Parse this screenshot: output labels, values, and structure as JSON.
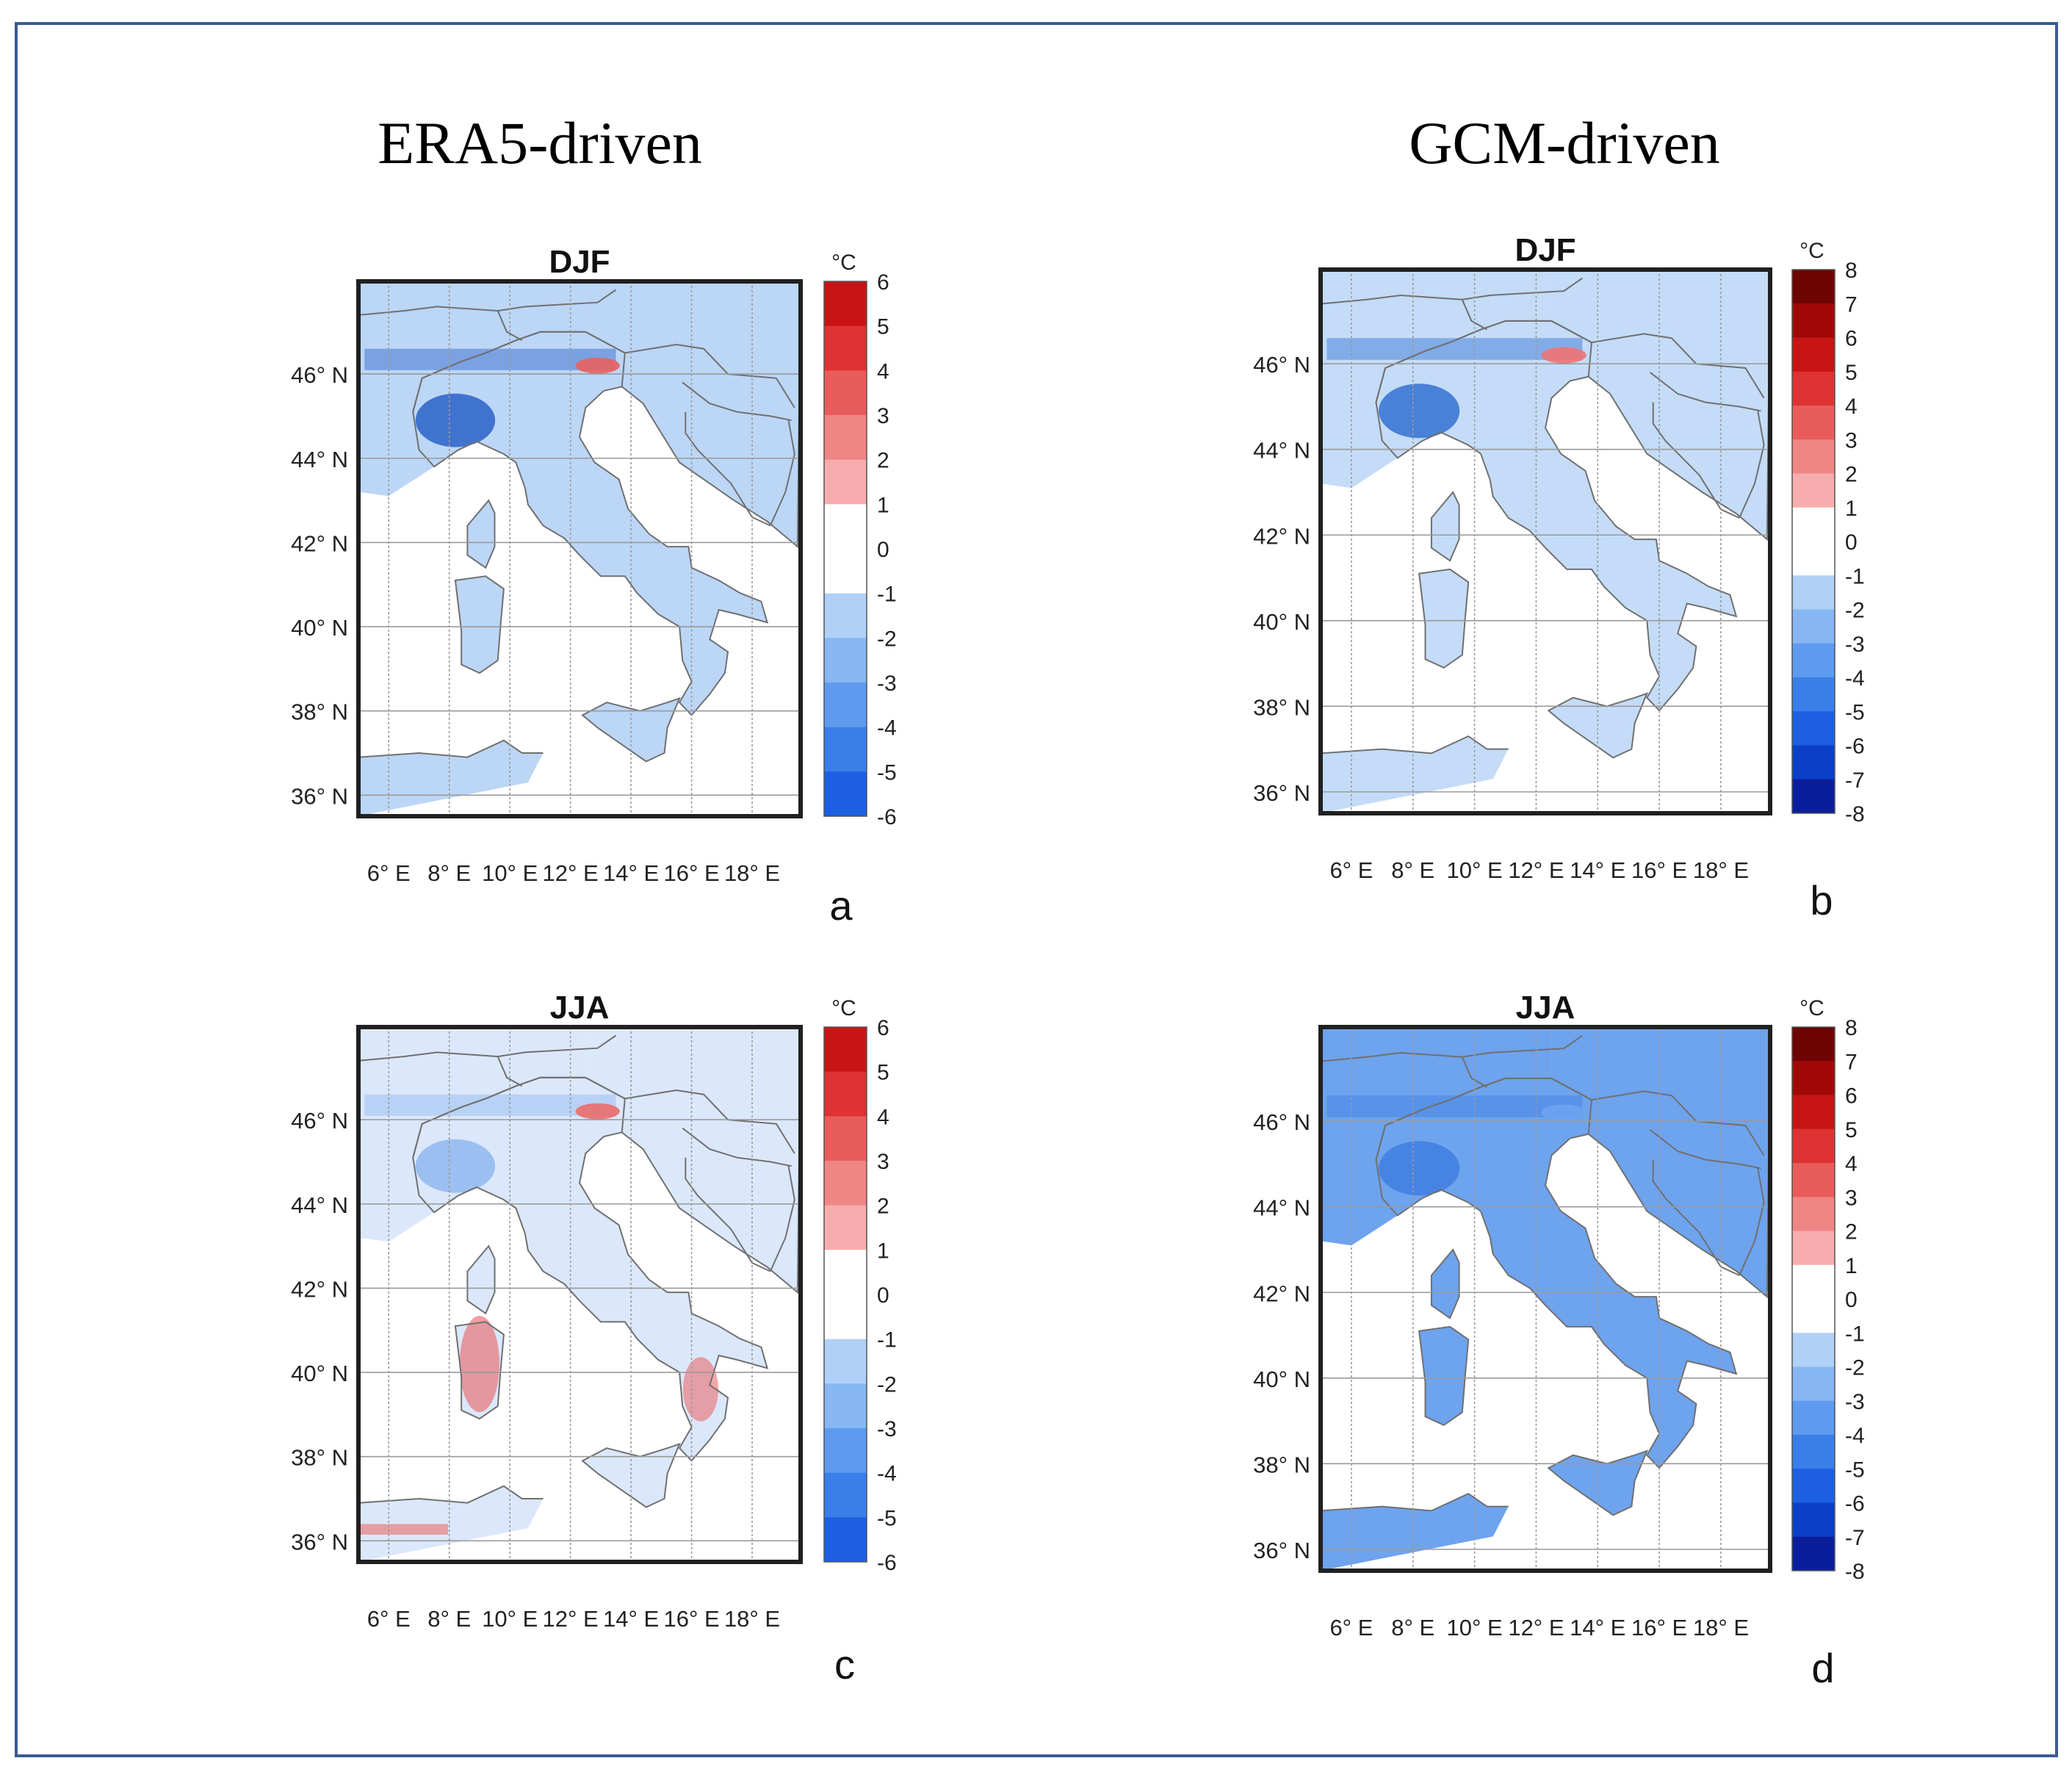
{
  "column_titles": [
    "ERA5-driven",
    "GCM-driven"
  ],
  "colorbar_unit": "°C",
  "lat_ticks": [
    "36° N",
    "38° N",
    "40° N",
    "42° N",
    "44° N",
    "46° N"
  ],
  "lon_ticks": [
    "6° E",
    "8° E",
    "10° E",
    "12° E",
    "14° E",
    "16° E",
    "18° E"
  ],
  "colors": {
    "frame": "#3b5b92",
    "map_border": "#202020",
    "grid": "#9a9a9a",
    "coastline": "#707070",
    "scale_blue": [
      "#08086e",
      "#0a1e9a",
      "#0b3fc8",
      "#1c5fe0",
      "#3a7ee8",
      "#5e9bee",
      "#86b7f3",
      "#b0d0f7",
      "#d6e6fb"
    ],
    "scale_red": [
      "#fcd6d6",
      "#f7adad",
      "#f08585",
      "#e85c5c",
      "#df3232",
      "#c81414",
      "#a00808",
      "#6e0404"
    ]
  },
  "panels": [
    {
      "title": "DJF",
      "letter": "a",
      "scale_labels": [
        "6",
        "5",
        "4",
        "3",
        "2",
        "1",
        "0",
        "-1",
        "-2",
        "-3",
        "-4",
        "-5",
        "-6"
      ],
      "fill": {
        "base": "#bcd6f6",
        "sea": "#ffffff",
        "hotspot": "#e86060",
        "cold_core": "#2a62c8"
      }
    },
    {
      "title": "DJF",
      "letter": "b",
      "scale_labels": [
        "8",
        "7",
        "6",
        "5",
        "4",
        "3",
        "2",
        "1",
        "0",
        "-1",
        "-2",
        "-3",
        "-4",
        "-5",
        "-6",
        "-7",
        "-8"
      ],
      "fill": {
        "base": "#c4dcf7",
        "sea": "#ffffff",
        "hotspot": "#ef7272",
        "cold_core": "#3470d2"
      }
    },
    {
      "title": "JJA",
      "letter": "c",
      "scale_labels": [
        "6",
        "5",
        "4",
        "3",
        "2",
        "1",
        "0",
        "-1",
        "-2",
        "-3",
        "-4",
        "-5",
        "-6"
      ],
      "fill": {
        "base": "#dbe8fb",
        "sea": "#ffffff",
        "hotspot": "#ea6c6c",
        "cold_core": "#8fb7ef"
      }
    },
    {
      "title": "JJA",
      "letter": "d",
      "scale_labels": [
        "8",
        "7",
        "6",
        "5",
        "4",
        "3",
        "2",
        "1",
        "0",
        "-1",
        "-2",
        "-3",
        "-4",
        "-5",
        "-6",
        "-7",
        "-8"
      ],
      "fill": {
        "base": "#6ea3ee",
        "sea": "#ffffff",
        "hotspot": "#6ea3ee",
        "cold_core": "#3f7fe2"
      }
    }
  ]
}
